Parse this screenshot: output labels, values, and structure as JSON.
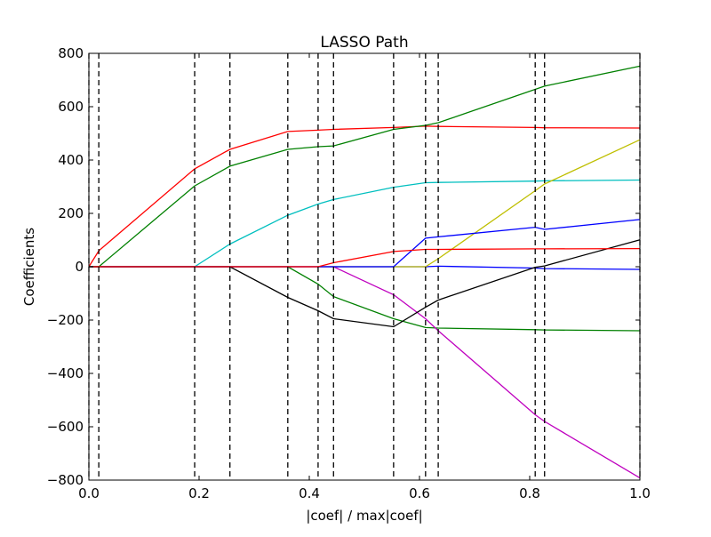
{
  "chart_data": {
    "type": "line",
    "title": "LASSO Path",
    "xlabel": "|coef| / max|coef|",
    "ylabel": "Coefficients",
    "xlim": [
      0,
      1
    ],
    "ylim": [
      -800,
      800
    ],
    "xticks": [
      "0.0",
      "0.2",
      "0.4",
      "0.6",
      "0.8",
      "1.0"
    ],
    "xtick_values": [
      0,
      0.2,
      0.4,
      0.6,
      0.8,
      1.0
    ],
    "yticks": [
      "800",
      "600",
      "400",
      "200",
      "0",
      "−200",
      "−400",
      "−600",
      "−800"
    ],
    "ytick_values": [
      800,
      600,
      400,
      200,
      0,
      -200,
      -400,
      -600,
      -800
    ],
    "grid": false,
    "breakpoints": [
      0,
      0.018,
      0.192,
      0.256,
      0.361,
      0.416,
      0.444,
      0.553,
      0.611,
      0.634,
      0.81,
      0.827,
      1.0
    ],
    "x": [
      0,
      0.018,
      0.192,
      0.256,
      0.361,
      0.416,
      0.444,
      0.553,
      0.611,
      0.634,
      0.81,
      0.827,
      1.0
    ],
    "series": [
      {
        "color": "#0000ff",
        "values": [
          0,
          0,
          0,
          0,
          0,
          0,
          0,
          0,
          0,
          2,
          -5,
          -7,
          -10
        ]
      },
      {
        "color": "#008000",
        "values": [
          0,
          0,
          0,
          0,
          0,
          -65,
          -112,
          -195,
          -228,
          -230,
          -236,
          -237,
          -240
        ]
      },
      {
        "color": "#ff0000",
        "values": [
          0,
          60,
          367,
          440,
          507,
          512,
          515,
          522,
          527,
          526,
          522,
          521,
          520
        ]
      },
      {
        "color": "#00bfbf",
        "values": [
          0,
          0,
          0,
          85,
          193,
          235,
          252,
          298,
          315,
          316,
          321,
          322,
          325
        ]
      },
      {
        "color": "#bf00bf",
        "values": [
          0,
          0,
          0,
          0,
          0,
          0,
          0,
          -105,
          -195,
          -240,
          -555,
          -580,
          -792
        ]
      },
      {
        "color": "#bfbf00",
        "values": [
          0,
          0,
          0,
          0,
          0,
          0,
          0,
          0,
          0,
          30,
          285,
          310,
          476
        ]
      },
      {
        "color": "#000000",
        "values": [
          0,
          0,
          0,
          0,
          -115,
          -165,
          -195,
          -225,
          -152,
          -125,
          -2,
          3,
          101
        ]
      },
      {
        "color": "#0000ff",
        "values": [
          0,
          0,
          0,
          0,
          0,
          0,
          0,
          0,
          107,
          112,
          148,
          140,
          177
        ]
      },
      {
        "color": "#008000",
        "values": [
          0,
          0,
          303,
          377,
          440,
          450,
          453,
          515,
          530,
          540,
          665,
          677,
          752
        ]
      },
      {
        "color": "#ff0000",
        "values": [
          0,
          0,
          0,
          0,
          0,
          0,
          15,
          57,
          65,
          65,
          67,
          67,
          68
        ]
      }
    ]
  }
}
